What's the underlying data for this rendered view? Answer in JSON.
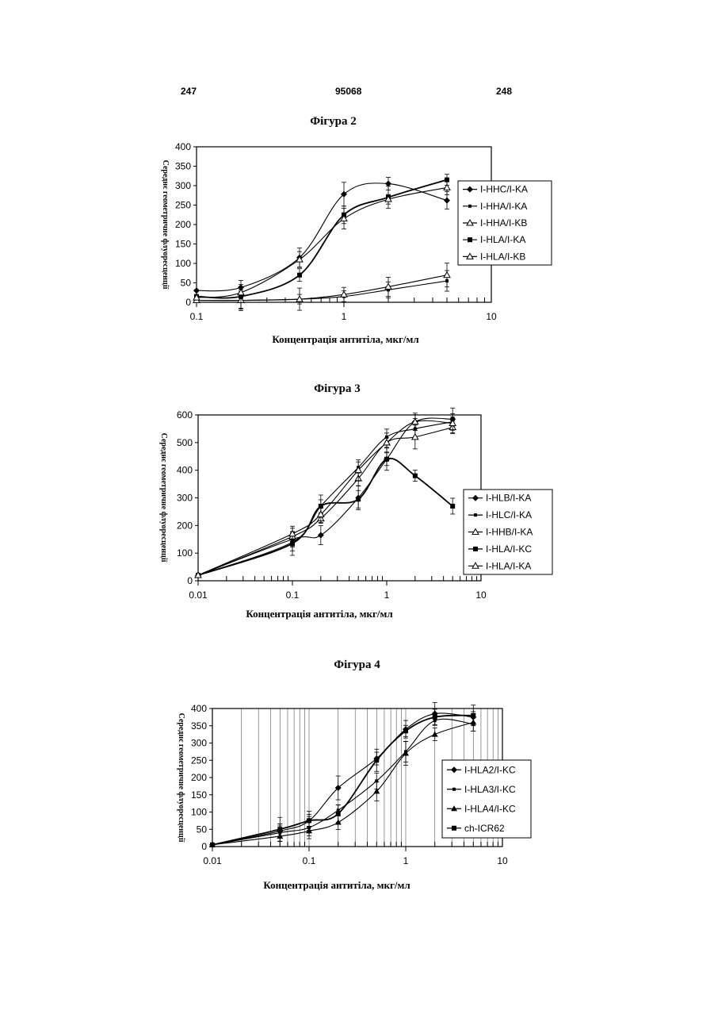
{
  "header": {
    "left": "247",
    "center": "95068",
    "right": "248"
  },
  "chart_data": [
    {
      "type": "line",
      "title": "Фігура 2",
      "xlabel": "Концентрація антитіла, мкг/мл",
      "ylabel": "Середнє геометричне флуоресценції",
      "xscale": "log",
      "xlim": [
        0.1,
        10
      ],
      "ylim": [
        0,
        400
      ],
      "yticks": [
        0,
        50,
        100,
        150,
        200,
        250,
        300,
        350,
        400
      ],
      "xticks": [
        "0.1",
        "1",
        "10"
      ],
      "grid": false,
      "legend": "right",
      "series": [
        {
          "name": "I-HHC/I-KA",
          "marker": "diamond",
          "x": [
            0.1,
            0.2,
            0.5,
            1,
            2,
            5
          ],
          "y": [
            30,
            38,
            115,
            278,
            305,
            262
          ]
        },
        {
          "name": "I-HHA/I-KA",
          "marker": "smallsquare",
          "x": [
            0.1,
            0.2,
            0.5,
            1,
            2,
            5
          ],
          "y": [
            5,
            5,
            8,
            15,
            32,
            55
          ]
        },
        {
          "name": "I-HHA/I-KB",
          "marker": "triangle-open",
          "x": [
            0.1,
            0.2,
            0.5,
            1,
            2,
            5
          ],
          "y": [
            5,
            5,
            8,
            20,
            40,
            70
          ]
        },
        {
          "name": "I-HLA/I-KA",
          "marker": "square",
          "x": [
            0.1,
            0.2,
            0.5,
            1,
            2,
            5
          ],
          "y": [
            15,
            15,
            70,
            225,
            270,
            315
          ]
        },
        {
          "name": "I-HLA/I-KB",
          "marker": "triangle-open",
          "x": [
            0.1,
            0.2,
            0.5,
            1,
            2,
            5
          ],
          "y": [
            12,
            25,
            110,
            215,
            265,
            295
          ]
        }
      ]
    },
    {
      "type": "line",
      "title": "Фігура 3",
      "xlabel": "Концентрація антитіла, мкг/мл",
      "ylabel": "Середнє геометричне флуоресценції",
      "xscale": "log",
      "xlim": [
        0.01,
        10
      ],
      "ylim": [
        0,
        600
      ],
      "yticks": [
        0,
        100,
        200,
        300,
        400,
        500,
        600
      ],
      "xticks": [
        "0.01",
        "0.1",
        "1",
        "10"
      ],
      "grid": false,
      "legend": "right",
      "series": [
        {
          "name": "I-HLB/I-KA",
          "marker": "diamond",
          "x": [
            0.01,
            0.1,
            0.2,
            0.5,
            1,
            2,
            5
          ],
          "y": [
            20,
            150,
            165,
            300,
            440,
            575,
            585
          ]
        },
        {
          "name": "I-HLC/I-KA",
          "marker": "smallsquare",
          "x": [
            0.01,
            0.1,
            0.2,
            0.5,
            1,
            2,
            5
          ],
          "y": [
            20,
            140,
            270,
            410,
            520,
            550,
            575
          ]
        },
        {
          "name": "I-HHB/I-KA",
          "marker": "triangle-open",
          "x": [
            0.01,
            0.1,
            0.2,
            0.5,
            1,
            2,
            5
          ],
          "y": [
            20,
            160,
            225,
            370,
            500,
            520,
            555
          ]
        },
        {
          "name": "I-HLA/I-KC",
          "marker": "square",
          "x": [
            0.01,
            0.1,
            0.2,
            0.5,
            1,
            2,
            5
          ],
          "y": [
            20,
            135,
            270,
            295,
            440,
            380,
            270
          ]
        },
        {
          "name": "I-HLA/I-KA",
          "marker": "triangle-open",
          "x": [
            0.01,
            0.1,
            0.2,
            0.5,
            1,
            2,
            5
          ],
          "y": [
            20,
            170,
            240,
            400,
            500,
            575,
            570
          ]
        }
      ]
    },
    {
      "type": "line",
      "title": "Фігура 4",
      "xlabel": "Концентрація антитіла, мкг/мл",
      "ylabel": "Середнє геометричне флуоресценції",
      "xscale": "log",
      "xlim": [
        0.01,
        10
      ],
      "ylim": [
        0,
        400
      ],
      "yticks": [
        0,
        50,
        100,
        150,
        200,
        250,
        300,
        350,
        400
      ],
      "xticks": [
        "0.01",
        "0.1",
        "1",
        "10"
      ],
      "grid": true,
      "legend": "right",
      "series": [
        {
          "name": "I-HLA2/I-KC",
          "marker": "diamond",
          "x": [
            0.01,
            0.05,
            0.1,
            0.2,
            0.5,
            1,
            2,
            5
          ],
          "y": [
            5,
            45,
            75,
            170,
            255,
            340,
            385,
            375
          ]
        },
        {
          "name": "I-HLA3/I-KC",
          "marker": "smallsquare",
          "x": [
            0.01,
            0.05,
            0.1,
            0.2,
            0.5,
            1,
            2,
            5
          ],
          "y": [
            5,
            40,
            55,
            105,
            190,
            275,
            365,
            355
          ]
        },
        {
          "name": "I-HLA4/I-KC",
          "marker": "triangle",
          "x": [
            0.01,
            0.05,
            0.1,
            0.2,
            0.5,
            1,
            2,
            5
          ],
          "y": [
            5,
            30,
            45,
            70,
            160,
            270,
            325,
            360
          ]
        },
        {
          "name": "ch-ICR62",
          "marker": "square",
          "x": [
            0.01,
            0.05,
            0.1,
            0.2,
            0.5,
            1,
            2,
            5
          ],
          "y": [
            5,
            50,
            75,
            95,
            250,
            335,
            375,
            380
          ]
        }
      ]
    }
  ]
}
